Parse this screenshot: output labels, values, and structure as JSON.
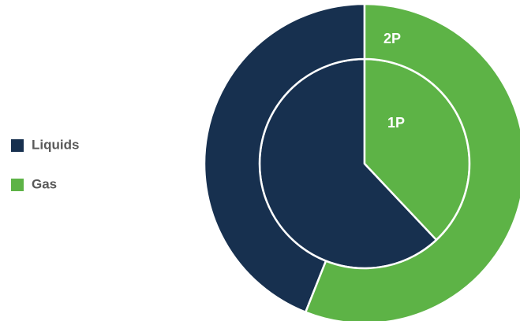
{
  "chart_data": {
    "type": "nested-pie",
    "categories": [
      "Liquids",
      "Gas"
    ],
    "colors": [
      "#17304f",
      "#5db346"
    ],
    "series": [
      {
        "name": "1P",
        "values": [
          62,
          38
        ]
      },
      {
        "name": "2P",
        "values": [
          44,
          56
        ]
      }
    ],
    "legend": "left"
  }
}
